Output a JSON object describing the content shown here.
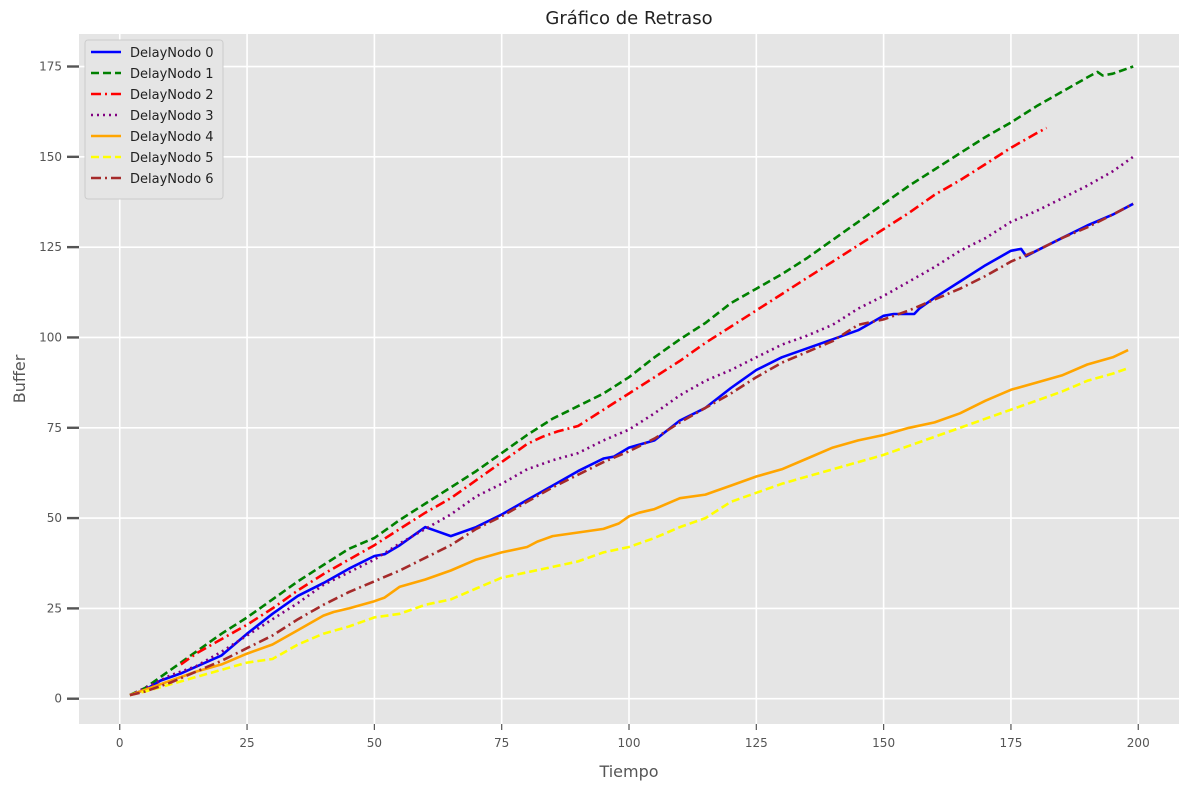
{
  "chart_data": {
    "type": "line",
    "title": "Gráfico de Retraso",
    "xlabel": "Tiempo",
    "ylabel": "Buffer",
    "xlim": [
      -8,
      208
    ],
    "ylim": [
      -7,
      184
    ],
    "xticks": [
      0,
      25,
      50,
      75,
      100,
      125,
      150,
      175,
      200
    ],
    "yticks": [
      0,
      25,
      50,
      75,
      100,
      125,
      150,
      175
    ],
    "grid": true,
    "legend": "top-left",
    "background": "#e5e5e5",
    "series": [
      {
        "name": "DelayNodo 0",
        "color": "#0000ff",
        "dash": "solid",
        "x": [
          2,
          5,
          8,
          12,
          16,
          20,
          25,
          30,
          35,
          40,
          45,
          50,
          52,
          55,
          58,
          60,
          62,
          65,
          70,
          75,
          80,
          85,
          90,
          95,
          97,
          100,
          105,
          110,
          115,
          120,
          125,
          130,
          135,
          140,
          145,
          150,
          152,
          155,
          156,
          157,
          160,
          165,
          170,
          175,
          177,
          178,
          180,
          185,
          190,
          195,
          199
        ],
        "y": [
          1,
          2.5,
          5,
          7,
          9.5,
          12,
          18,
          23.5,
          28.5,
          32,
          36,
          39.5,
          40,
          42.5,
          45.5,
          47.5,
          46.5,
          45,
          47.5,
          51,
          55,
          59,
          63,
          66.5,
          67,
          69.5,
          71.5,
          77,
          80.5,
          86,
          91,
          94.5,
          97,
          99.5,
          102,
          106,
          106.5,
          106.5,
          106.5,
          108,
          111,
          115.5,
          120,
          124,
          124.5,
          122.5,
          124,
          127.5,
          131,
          134,
          137
        ]
      },
      {
        "name": "DelayNodo 1",
        "color": "#008000",
        "dash": "8,4",
        "x": [
          2,
          5,
          10,
          15,
          20,
          25,
          30,
          35,
          40,
          45,
          50,
          55,
          60,
          65,
          70,
          75,
          80,
          85,
          90,
          95,
          100,
          105,
          110,
          115,
          120,
          125,
          130,
          135,
          140,
          145,
          150,
          155,
          160,
          165,
          170,
          175,
          180,
          185,
          190,
          192,
          193,
          195,
          199
        ],
        "y": [
          1,
          3,
          8,
          13,
          18,
          22.5,
          27.5,
          32.5,
          37,
          41.5,
          44.5,
          49.5,
          54,
          58.5,
          63,
          68,
          73,
          77.5,
          81,
          84.5,
          89,
          94.5,
          99.5,
          104,
          109.5,
          113.5,
          117.5,
          122,
          127,
          132,
          137,
          142,
          146.5,
          151,
          155.5,
          159.5,
          164,
          168,
          172,
          173.5,
          172.5,
          173,
          175
        ]
      },
      {
        "name": "DelayNodo 2",
        "color": "#ff0000",
        "dash": "10,4,2,4",
        "x": [
          12,
          15,
          20,
          25,
          30,
          35,
          40,
          45,
          50,
          55,
          60,
          65,
          70,
          75,
          80,
          83,
          86,
          90,
          95,
          100,
          105,
          110,
          115,
          120,
          125,
          130,
          135,
          140,
          145,
          150,
          155,
          160,
          165,
          170,
          175,
          180,
          182
        ],
        "y": [
          9.5,
          12.5,
          16.5,
          20.5,
          25,
          30,
          34.5,
          38.5,
          42.5,
          47,
          51.5,
          55.5,
          60.5,
          65.5,
          70.5,
          72.5,
          74,
          75.5,
          80,
          84.5,
          89,
          93.5,
          98.5,
          103,
          107.5,
          112,
          116.5,
          121,
          125.5,
          130,
          134.5,
          139.5,
          143.5,
          148,
          152.5,
          156.5,
          158
        ]
      },
      {
        "name": "DelayNodo 3",
        "color": "#800080",
        "dash": "2,4",
        "x": [
          2,
          5,
          10,
          15,
          20,
          25,
          30,
          35,
          40,
          45,
          50,
          55,
          60,
          65,
          70,
          75,
          80,
          85,
          90,
          95,
          100,
          105,
          110,
          115,
          120,
          125,
          130,
          135,
          140,
          145,
          150,
          155,
          160,
          165,
          170,
          175,
          180,
          185,
          190,
          195,
          199
        ],
        "y": [
          1,
          3,
          6.5,
          9,
          13,
          17.5,
          22,
          26.5,
          31.5,
          35,
          38.5,
          43,
          47,
          51,
          56,
          59.5,
          63.5,
          66,
          68,
          71.5,
          74.5,
          79,
          84,
          88,
          91,
          94.5,
          98,
          100.5,
          103.5,
          108,
          111.5,
          115.5,
          119.5,
          124,
          127.5,
          132,
          135,
          138.5,
          142,
          146,
          150
        ]
      },
      {
        "name": "DelayNodo 4",
        "color": "#ffa500",
        "dash": "solid",
        "x": [
          2,
          5,
          10,
          15,
          20,
          25,
          30,
          35,
          40,
          42,
          45,
          50,
          52,
          55,
          60,
          65,
          70,
          75,
          80,
          82,
          83,
          85,
          90,
          95,
          98,
          100,
          102,
          105,
          110,
          115,
          117,
          120,
          125,
          130,
          135,
          140,
          145,
          150,
          155,
          160,
          165,
          170,
          175,
          180,
          185,
          190,
          195,
          198
        ],
        "y": [
          1,
          2.5,
          5,
          7.5,
          9.5,
          12.5,
          15,
          19,
          23,
          24,
          25,
          27,
          28,
          31,
          33,
          35.5,
          38.5,
          40.5,
          42,
          43.5,
          44,
          45,
          46,
          47,
          48.5,
          50.5,
          51.5,
          52.5,
          55.5,
          56.5,
          57.5,
          59,
          61.5,
          63.5,
          66.5,
          69.5,
          71.5,
          73,
          75,
          76.5,
          79,
          82.5,
          85.5,
          87.5,
          89.5,
          92.5,
          94.5,
          96.5
        ]
      },
      {
        "name": "DelayNodo 5",
        "color": "#ffff00",
        "dash": "8,4",
        "x": [
          2,
          5,
          10,
          15,
          20,
          25,
          30,
          35,
          40,
          45,
          50,
          55,
          60,
          65,
          70,
          75,
          80,
          85,
          90,
          95,
          100,
          105,
          110,
          115,
          120,
          125,
          130,
          135,
          140,
          145,
          150,
          155,
          160,
          165,
          170,
          175,
          180,
          185,
          190,
          195,
          198
        ],
        "y": [
          1,
          2,
          4,
          6,
          8,
          10,
          11,
          15,
          18,
          20,
          22.5,
          23.5,
          26,
          27.5,
          30.5,
          33.5,
          35,
          36.5,
          38,
          40.5,
          42,
          44.5,
          47.5,
          50,
          54.5,
          57,
          59.5,
          61.5,
          63.5,
          65.5,
          67.5,
          70,
          72.5,
          75,
          77.5,
          80,
          82.5,
          85,
          88,
          90,
          91.5
        ]
      },
      {
        "name": "DelayNodo 6",
        "color": "#a52a2a",
        "dash": "10,4,2,4",
        "x": [
          2,
          5,
          10,
          15,
          20,
          25,
          30,
          35,
          40,
          45,
          50,
          55,
          60,
          65,
          70,
          75,
          80,
          85,
          90,
          95,
          100,
          105,
          110,
          115,
          120,
          125,
          130,
          135,
          140,
          145,
          150,
          155,
          160,
          165,
          170,
          175,
          180,
          185,
          190,
          195,
          199
        ],
        "y": [
          1,
          2,
          4.5,
          7.5,
          10.5,
          14,
          17.5,
          22,
          26,
          29.5,
          32.5,
          35.5,
          39,
          42.5,
          47,
          50.5,
          54.5,
          58.5,
          62,
          65.5,
          68.5,
          72,
          76.5,
          80.5,
          84.5,
          89,
          93,
          96,
          99,
          103.5,
          105,
          107.5,
          110.5,
          113.5,
          117,
          121,
          124,
          127.5,
          130.5,
          134,
          137
        ]
      }
    ]
  }
}
